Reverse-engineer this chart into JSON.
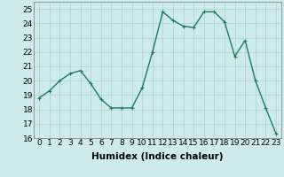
{
  "x": [
    0,
    1,
    2,
    3,
    4,
    5,
    6,
    7,
    8,
    9,
    10,
    11,
    12,
    13,
    14,
    15,
    16,
    17,
    18,
    19,
    20,
    21,
    22,
    23
  ],
  "y": [
    18.8,
    19.3,
    20.0,
    20.5,
    20.7,
    19.8,
    18.7,
    18.1,
    18.1,
    18.1,
    19.5,
    22.0,
    24.8,
    24.2,
    23.8,
    23.7,
    24.8,
    24.8,
    24.1,
    21.7,
    22.8,
    20.0,
    18.1,
    16.3
  ],
  "line_color": "#1a7a6e",
  "marker": "+",
  "marker_size": 3,
  "bg_color": "#ceeaea",
  "grid_color": "#b0d0d0",
  "xlabel": "Humidex (Indice chaleur)",
  "ylim": [
    16,
    25.5
  ],
  "xlim": [
    -0.5,
    23.5
  ],
  "yticks": [
    16,
    17,
    18,
    19,
    20,
    21,
    22,
    23,
    24,
    25
  ],
  "xticks": [
    0,
    1,
    2,
    3,
    4,
    5,
    6,
    7,
    8,
    9,
    10,
    11,
    12,
    13,
    14,
    15,
    16,
    17,
    18,
    19,
    20,
    21,
    22,
    23
  ],
  "xtick_labels": [
    "0",
    "1",
    "2",
    "3",
    "4",
    "5",
    "6",
    "7",
    "8",
    "9",
    "10",
    "11",
    "12",
    "13",
    "14",
    "15",
    "16",
    "17",
    "18",
    "19",
    "20",
    "21",
    "22",
    "23"
  ],
  "xlabel_fontsize": 7.5,
  "tick_fontsize": 6.5,
  "linewidth": 1.0
}
